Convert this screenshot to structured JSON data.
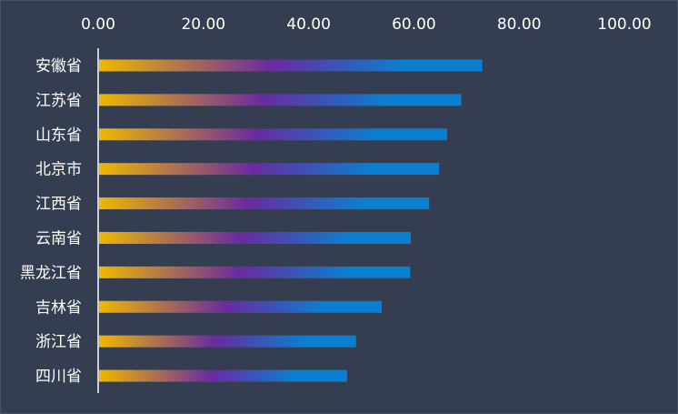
{
  "chart_data": {
    "type": "bar",
    "orientation": "horizontal",
    "categories": [
      "安徽省",
      "江苏省",
      "山东省",
      "北京市",
      "江西省",
      "云南省",
      "黑龙江省",
      "吉林省",
      "浙江省",
      "四川省"
    ],
    "values": [
      73.0,
      69.0,
      66.3,
      64.8,
      62.9,
      59.4,
      59.3,
      53.9,
      49.0,
      47.3
    ],
    "xlim": [
      0,
      100
    ],
    "x_ticks": [
      "0.00",
      "20.00",
      "40.00",
      "60.00",
      "80.00",
      "100.00"
    ],
    "x_axis_position": "top",
    "grid": false,
    "legend": "none",
    "title": "",
    "xlabel": "",
    "ylabel": "",
    "colors": {
      "background": "#353e50",
      "text": "#ffffff",
      "axis": "#ffffff",
      "gradient_start": "#f0b800",
      "gradient_mid": "#6a2aa0",
      "gradient_end": "#0a7fd0"
    }
  }
}
